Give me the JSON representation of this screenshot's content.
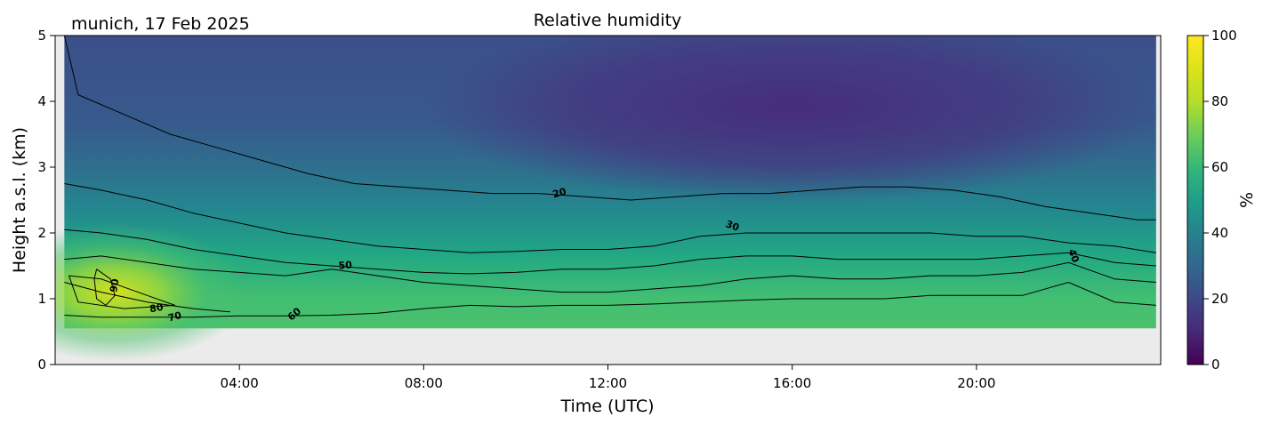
{
  "chart_data": {
    "type": "heatmap",
    "location_date": "munich, 17 Feb 2025",
    "title": "Relative humidity",
    "xlabel": "Time (UTC)",
    "ylabel": "Height a.s.l. (km)",
    "colorbar_label": "%",
    "colormap": "viridis",
    "x_range_hours": [
      0,
      24
    ],
    "ylim": [
      0,
      5
    ],
    "clim": [
      0,
      100
    ],
    "x_ticks": [
      {
        "h": 4,
        "label": "04:00"
      },
      {
        "h": 8,
        "label": "08:00"
      },
      {
        "h": 12,
        "label": "12:00"
      },
      {
        "h": 16,
        "label": "16:00"
      },
      {
        "h": 20,
        "label": "20:00"
      }
    ],
    "y_ticks": [
      "0",
      "1",
      "2",
      "3",
      "4",
      "5"
    ],
    "colorbar_ticks": [
      "0",
      "20",
      "40",
      "60",
      "80",
      "100"
    ],
    "no_data_below_km": 0.55,
    "data_end_hours": 23.9,
    "contour_levels": [
      20,
      30,
      40,
      50,
      60,
      70,
      80,
      90
    ],
    "contours": [
      {
        "level": 20,
        "points": [
          [
            0.2,
            5.0
          ],
          [
            0.5,
            4.1
          ],
          [
            1.5,
            3.8
          ],
          [
            2.5,
            3.5
          ],
          [
            3.5,
            3.3
          ],
          [
            4.5,
            3.1
          ],
          [
            5.5,
            2.9
          ],
          [
            6.5,
            2.75
          ],
          [
            7.5,
            2.7
          ],
          [
            8.5,
            2.65
          ],
          [
            9.5,
            2.6
          ],
          [
            10.5,
            2.6
          ],
          [
            11.5,
            2.55
          ],
          [
            12.5,
            2.5
          ],
          [
            13.5,
            2.55
          ],
          [
            14.5,
            2.6
          ],
          [
            15.5,
            2.6
          ],
          [
            16.5,
            2.65
          ],
          [
            17.5,
            2.7
          ],
          [
            18.5,
            2.7
          ],
          [
            19.5,
            2.65
          ],
          [
            20.5,
            2.55
          ],
          [
            21.5,
            2.4
          ],
          [
            22.5,
            2.3
          ],
          [
            23.5,
            2.2
          ],
          [
            23.9,
            2.2
          ]
        ]
      },
      {
        "level": 30,
        "points": [
          [
            0.2,
            2.75
          ],
          [
            1.0,
            2.65
          ],
          [
            2.0,
            2.5
          ],
          [
            3.0,
            2.3
          ],
          [
            4.0,
            2.15
          ],
          [
            5.0,
            2.0
          ],
          [
            6.0,
            1.9
          ],
          [
            7.0,
            1.8
          ],
          [
            8.0,
            1.75
          ],
          [
            9.0,
            1.7
          ],
          [
            10.0,
            1.72
          ],
          [
            11.0,
            1.75
          ],
          [
            12.0,
            1.75
          ],
          [
            13.0,
            1.8
          ],
          [
            14.0,
            1.95
          ],
          [
            15.0,
            2.0
          ],
          [
            16.0,
            2.0
          ],
          [
            17.0,
            2.0
          ],
          [
            18.0,
            2.0
          ],
          [
            19.0,
            2.0
          ],
          [
            20.0,
            1.95
          ],
          [
            21.0,
            1.95
          ],
          [
            22.0,
            1.85
          ],
          [
            23.0,
            1.8
          ],
          [
            23.9,
            1.7
          ]
        ]
      },
      {
        "level": 40,
        "points": [
          [
            0.2,
            2.05
          ],
          [
            1.0,
            2.0
          ],
          [
            2.0,
            1.9
          ],
          [
            3.0,
            1.75
          ],
          [
            4.0,
            1.65
          ],
          [
            5.0,
            1.55
          ],
          [
            6.0,
            1.5
          ],
          [
            7.0,
            1.45
          ],
          [
            8.0,
            1.4
          ],
          [
            9.0,
            1.38
          ],
          [
            10.0,
            1.4
          ],
          [
            11.0,
            1.45
          ],
          [
            12.0,
            1.45
          ],
          [
            13.0,
            1.5
          ],
          [
            14.0,
            1.6
          ],
          [
            15.0,
            1.65
          ],
          [
            16.0,
            1.65
          ],
          [
            17.0,
            1.6
          ],
          [
            18.0,
            1.6
          ],
          [
            19.0,
            1.6
          ],
          [
            20.0,
            1.6
          ],
          [
            21.0,
            1.65
          ],
          [
            22.0,
            1.7
          ],
          [
            23.0,
            1.55
          ],
          [
            23.9,
            1.5
          ]
        ]
      },
      {
        "level": 50,
        "points": [
          [
            0.2,
            1.6
          ],
          [
            1.0,
            1.65
          ],
          [
            2.0,
            1.55
          ],
          [
            3.0,
            1.45
          ],
          [
            4.0,
            1.4
          ],
          [
            5.0,
            1.35
          ],
          [
            6.0,
            1.45
          ],
          [
            7.0,
            1.35
          ],
          [
            8.0,
            1.25
          ],
          [
            9.0,
            1.2
          ],
          [
            10.0,
            1.15
          ],
          [
            11.0,
            1.1
          ],
          [
            12.0,
            1.1
          ],
          [
            13.0,
            1.15
          ],
          [
            14.0,
            1.2
          ],
          [
            15.0,
            1.3
          ],
          [
            16.0,
            1.35
          ],
          [
            17.0,
            1.3
          ],
          [
            18.0,
            1.3
          ],
          [
            19.0,
            1.35
          ],
          [
            20.0,
            1.35
          ],
          [
            21.0,
            1.4
          ],
          [
            22.0,
            1.55
          ],
          [
            23.0,
            1.3
          ],
          [
            23.9,
            1.25
          ]
        ]
      },
      {
        "level": 60,
        "points": [
          [
            0.2,
            0.75
          ],
          [
            1.0,
            0.72
          ],
          [
            2.0,
            0.72
          ],
          [
            3.0,
            0.72
          ],
          [
            4.0,
            0.74
          ],
          [
            5.0,
            0.74
          ],
          [
            6.0,
            0.75
          ],
          [
            7.0,
            0.78
          ],
          [
            8.0,
            0.85
          ],
          [
            9.0,
            0.9
          ],
          [
            10.0,
            0.88
          ],
          [
            11.0,
            0.9
          ],
          [
            12.0,
            0.9
          ],
          [
            13.0,
            0.92
          ],
          [
            14.0,
            0.95
          ],
          [
            15.0,
            0.98
          ],
          [
            16.0,
            1.0
          ],
          [
            17.0,
            1.0
          ],
          [
            18.0,
            1.0
          ],
          [
            19.0,
            1.05
          ],
          [
            20.0,
            1.05
          ],
          [
            21.0,
            1.05
          ],
          [
            22.0,
            1.25
          ],
          [
            23.0,
            0.95
          ],
          [
            23.9,
            0.9
          ]
        ]
      },
      {
        "level": 70,
        "points": [
          [
            0.2,
            1.25
          ],
          [
            1.0,
            1.1
          ],
          [
            2.0,
            0.95
          ],
          [
            3.0,
            0.85
          ],
          [
            3.8,
            0.8
          ]
        ]
      },
      {
        "level": 80,
        "points": [
          [
            0.3,
            1.35
          ],
          [
            1.0,
            1.3
          ],
          [
            2.0,
            1.05
          ],
          [
            2.6,
            0.9
          ],
          [
            1.5,
            0.85
          ],
          [
            0.5,
            0.95
          ],
          [
            0.3,
            1.35
          ]
        ]
      },
      {
        "level": 90,
        "points": [
          [
            0.9,
            1.45
          ],
          [
            1.2,
            1.3
          ],
          [
            1.3,
            1.05
          ],
          [
            1.1,
            0.9
          ],
          [
            0.9,
            1.0
          ],
          [
            0.85,
            1.3
          ],
          [
            0.9,
            1.45
          ]
        ]
      }
    ],
    "contour_labels": [
      {
        "text": "20",
        "h": 10.95,
        "km": 2.6,
        "rot": -15
      },
      {
        "text": "30",
        "h": 14.7,
        "km": 2.1,
        "rot": 20
      },
      {
        "text": "50",
        "h": 6.3,
        "km": 1.5,
        "rot": -5
      },
      {
        "text": "40",
        "h": 22.1,
        "km": 1.65,
        "rot": 70
      },
      {
        "text": "60",
        "h": 5.2,
        "km": 0.76,
        "rot": -40
      },
      {
        "text": "70",
        "h": 2.6,
        "km": 0.72,
        "rot": -15
      },
      {
        "text": "80",
        "h": 2.2,
        "km": 0.85,
        "rot": -10
      },
      {
        "text": "90",
        "h": 1.3,
        "km": 1.2,
        "rot": -80
      }
    ]
  }
}
